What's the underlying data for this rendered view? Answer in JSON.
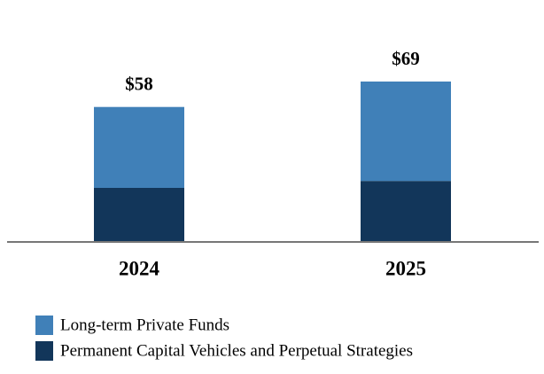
{
  "chart_data": {
    "type": "stacked_bar",
    "categories": [
      "2024",
      "2025"
    ],
    "series": [
      {
        "name": "Long-term Private Funds",
        "color": "#4080b8",
        "values": [
          35,
          43
        ]
      },
      {
        "name": "Permanent Capital Vehicles and Perpetual Strategies",
        "color": "#12365a",
        "values": [
          23,
          26
        ]
      }
    ],
    "totals": [
      58,
      69
    ],
    "total_labels": [
      "$58",
      "$69"
    ]
  }
}
